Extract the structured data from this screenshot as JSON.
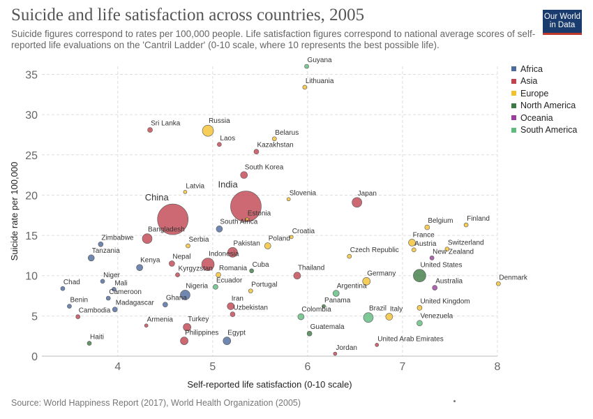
{
  "header": {
    "title": "Suicide and life satisfaction across countries, 2005",
    "subtitle": "Suicide figures correspond to rates per 100,000 people. Life satisfaction figures correspond to national average scores of self-reported life evaluations on the 'Cantril Ladder' (0-10 scale, where 10 represents the best possible life).",
    "logo_line1": "Our World",
    "logo_line2": "in Data"
  },
  "footer": {
    "source": "Source: World Happiness Report (2017), World Health Organization (2005)"
  },
  "colors": {
    "Africa": "#4c6a9c",
    "Asia": "#c0434f",
    "Europe": "#f2c12e",
    "North America": "#3d7a43",
    "Oceania": "#9b3f9e",
    "South America": "#5fba7d"
  },
  "chart_data": {
    "type": "scatter",
    "title": "Suicide and life satisfaction across countries, 2005",
    "xlabel": "Self-reported life satisfaction (0-10 scale)",
    "ylabel": "Suicide rate per 100,000",
    "xlim": [
      3.2,
      8.0
    ],
    "ylim": [
      0,
      36
    ],
    "xticks": [
      4,
      5,
      6,
      7,
      8
    ],
    "yticks": [
      0,
      5,
      10,
      15,
      20,
      25,
      30,
      35
    ],
    "grid": true,
    "legend_position": "right",
    "legend": [
      "Africa",
      "Asia",
      "Europe",
      "North America",
      "Oceania",
      "South America"
    ],
    "points": [
      {
        "label": "Guyana",
        "x": 5.99,
        "y": 36.0,
        "region": "South America",
        "size": 3
      },
      {
        "label": "Lithuania",
        "x": 5.97,
        "y": 33.4,
        "region": "Europe",
        "size": 3
      },
      {
        "label": "Sri Lanka",
        "x": 4.34,
        "y": 28.1,
        "region": "Asia",
        "size": 3.5
      },
      {
        "label": "Russia",
        "x": 4.95,
        "y": 28.0,
        "region": "Europe",
        "size": 8
      },
      {
        "label": "Belarus",
        "x": 5.65,
        "y": 27.0,
        "region": "Europe",
        "size": 3
      },
      {
        "label": "Laos",
        "x": 5.07,
        "y": 26.3,
        "region": "Asia",
        "size": 3
      },
      {
        "label": "Kazakhstan",
        "x": 5.46,
        "y": 25.4,
        "region": "Asia",
        "size": 3.5
      },
      {
        "label": "South Korea",
        "x": 5.33,
        "y": 22.5,
        "region": "Asia",
        "size": 5
      },
      {
        "label": "Latvia",
        "x": 4.71,
        "y": 20.4,
        "region": "Europe",
        "size": 2.5
      },
      {
        "label": "India",
        "x": 5.35,
        "y": 18.6,
        "region": "Asia",
        "size": 22
      },
      {
        "label": "China",
        "x": 4.58,
        "y": 17.0,
        "region": "Asia",
        "size": 22
      },
      {
        "label": "Slovenia",
        "x": 5.8,
        "y": 19.5,
        "region": "Europe",
        "size": 2.5
      },
      {
        "label": "Japan",
        "x": 6.52,
        "y": 19.1,
        "region": "Asia",
        "size": 7
      },
      {
        "label": "Estonia",
        "x": 5.36,
        "y": 17.0,
        "region": "Europe",
        "size": 2.5
      },
      {
        "label": "South Africa",
        "x": 5.07,
        "y": 15.8,
        "region": "Africa",
        "size": 4.5
      },
      {
        "label": "Belgium",
        "x": 7.26,
        "y": 16.0,
        "region": "Europe",
        "size": 3.5
      },
      {
        "label": "Finland",
        "x": 7.67,
        "y": 16.3,
        "region": "Europe",
        "size": 3
      },
      {
        "label": "Bangladesh",
        "x": 4.31,
        "y": 14.6,
        "region": "Asia",
        "size": 7
      },
      {
        "label": "Croatia",
        "x": 5.83,
        "y": 14.8,
        "region": "Europe",
        "size": 2.5
      },
      {
        "label": "Zimbabwe",
        "x": 3.82,
        "y": 13.9,
        "region": "Africa",
        "size": 3.5
      },
      {
        "label": "Serbia",
        "x": 4.74,
        "y": 13.7,
        "region": "Europe",
        "size": 3
      },
      {
        "label": "France",
        "x": 7.1,
        "y": 14.1,
        "region": "Europe",
        "size": 5
      },
      {
        "label": "Austria",
        "x": 7.12,
        "y": 13.2,
        "region": "Europe",
        "size": 3
      },
      {
        "label": "Switzerland",
        "x": 7.47,
        "y": 13.3,
        "region": "Europe",
        "size": 3
      },
      {
        "label": "Tanzania",
        "x": 3.72,
        "y": 12.2,
        "region": "Africa",
        "size": 4.5
      },
      {
        "label": "Pakistan",
        "x": 5.21,
        "y": 12.9,
        "region": "Asia",
        "size": 7
      },
      {
        "label": "Poland",
        "x": 5.58,
        "y": 13.7,
        "region": "Europe",
        "size": 4.5
      },
      {
        "label": "New Zealand",
        "x": 7.31,
        "y": 12.2,
        "region": "Oceania",
        "size": 3
      },
      {
        "label": "Czech Republic",
        "x": 6.44,
        "y": 12.4,
        "region": "Europe",
        "size": 3
      },
      {
        "label": "Nepal",
        "x": 4.57,
        "y": 11.5,
        "region": "Asia",
        "size": 4
      },
      {
        "label": "Indonesia",
        "x": 4.95,
        "y": 11.4,
        "region": "Asia",
        "size": 9
      },
      {
        "label": "Kenya",
        "x": 4.23,
        "y": 11.0,
        "region": "Africa",
        "size": 4.5
      },
      {
        "label": "Cuba",
        "x": 5.41,
        "y": 10.6,
        "region": "North America",
        "size": 3
      },
      {
        "label": "United States",
        "x": 7.18,
        "y": 10.0,
        "region": "North America",
        "size": 9
      },
      {
        "label": "Thailand",
        "x": 5.89,
        "y": 10.0,
        "region": "Asia",
        "size": 5
      },
      {
        "label": "Kyrgyzstan",
        "x": 4.63,
        "y": 10.1,
        "region": "Asia",
        "size": 3
      },
      {
        "label": "Romania",
        "x": 5.06,
        "y": 10.1,
        "region": "Europe",
        "size": 3.5
      },
      {
        "label": "Niger",
        "x": 3.84,
        "y": 9.3,
        "region": "Africa",
        "size": 3
      },
      {
        "label": "Germany",
        "x": 6.62,
        "y": 9.3,
        "region": "Europe",
        "size": 5.5
      },
      {
        "label": "Denmark",
        "x": 8.01,
        "y": 9.0,
        "region": "Europe",
        "size": 3
      },
      {
        "label": "Australia",
        "x": 7.34,
        "y": 8.5,
        "region": "Oceania",
        "size": 3.5
      },
      {
        "label": "Chad",
        "x": 3.42,
        "y": 8.4,
        "region": "Africa",
        "size": 3
      },
      {
        "label": "Mali",
        "x": 3.96,
        "y": 8.3,
        "region": "Africa",
        "size": 3
      },
      {
        "label": "Ecuador",
        "x": 5.03,
        "y": 8.6,
        "region": "South America",
        "size": 3.5
      },
      {
        "label": "Portugal",
        "x": 5.4,
        "y": 8.1,
        "region": "Europe",
        "size": 3
      },
      {
        "label": "Nigeria",
        "x": 4.71,
        "y": 7.6,
        "region": "Africa",
        "size": 7
      },
      {
        "label": "Argentina",
        "x": 6.3,
        "y": 7.8,
        "region": "South America",
        "size": 4.5
      },
      {
        "label": "Cameroon",
        "x": 3.9,
        "y": 7.2,
        "region": "Africa",
        "size": 3
      },
      {
        "label": "United Kingdom",
        "x": 7.18,
        "y": 6.0,
        "region": "Europe",
        "size": 3.5
      },
      {
        "label": "Benin",
        "x": 3.49,
        "y": 6.2,
        "region": "Africa",
        "size": 3
      },
      {
        "label": "Madagascar",
        "x": 3.97,
        "y": 5.8,
        "region": "Africa",
        "size": 3.5
      },
      {
        "label": "Ghana",
        "x": 4.5,
        "y": 6.4,
        "region": "Africa",
        "size": 3.5
      },
      {
        "label": "Iran",
        "x": 5.19,
        "y": 6.2,
        "region": "Asia",
        "size": 5
      },
      {
        "label": "Panama",
        "x": 6.17,
        "y": 6.2,
        "region": "North America",
        "size": 2.5
      },
      {
        "label": "Uzbekistan",
        "x": 5.21,
        "y": 5.2,
        "region": "Asia",
        "size": 3.5
      },
      {
        "label": "Brazil",
        "x": 6.64,
        "y": 4.8,
        "region": "South America",
        "size": 7
      },
      {
        "label": "Italy",
        "x": 6.86,
        "y": 4.9,
        "region": "Europe",
        "size": 5
      },
      {
        "label": "Colombia",
        "x": 5.93,
        "y": 4.9,
        "region": "South America",
        "size": 4.5
      },
      {
        "label": "Cambodia",
        "x": 3.58,
        "y": 4.9,
        "region": "Asia",
        "size": 3
      },
      {
        "label": "Venezuela",
        "x": 7.18,
        "y": 4.1,
        "region": "South America",
        "size": 4
      },
      {
        "label": "Armenia",
        "x": 4.3,
        "y": 3.8,
        "region": "Asia",
        "size": 2.5
      },
      {
        "label": "Turkey",
        "x": 4.73,
        "y": 3.6,
        "region": "Asia",
        "size": 5.5
      },
      {
        "label": "Philippines",
        "x": 4.7,
        "y": 1.9,
        "region": "Asia",
        "size": 5.5
      },
      {
        "label": "Egypt",
        "x": 5.15,
        "y": 1.9,
        "region": "Africa",
        "size": 5.5
      },
      {
        "label": "Guatemala",
        "x": 6.02,
        "y": 2.8,
        "region": "North America",
        "size": 3.5
      },
      {
        "label": "Haiti",
        "x": 3.7,
        "y": 1.6,
        "region": "North America",
        "size": 3
      },
      {
        "label": "United Arab Emirates",
        "x": 6.73,
        "y": 1.4,
        "region": "Asia",
        "size": 2.5
      },
      {
        "label": "Jordan",
        "x": 6.29,
        "y": 0.3,
        "region": "Asia",
        "size": 2.5
      }
    ]
  }
}
